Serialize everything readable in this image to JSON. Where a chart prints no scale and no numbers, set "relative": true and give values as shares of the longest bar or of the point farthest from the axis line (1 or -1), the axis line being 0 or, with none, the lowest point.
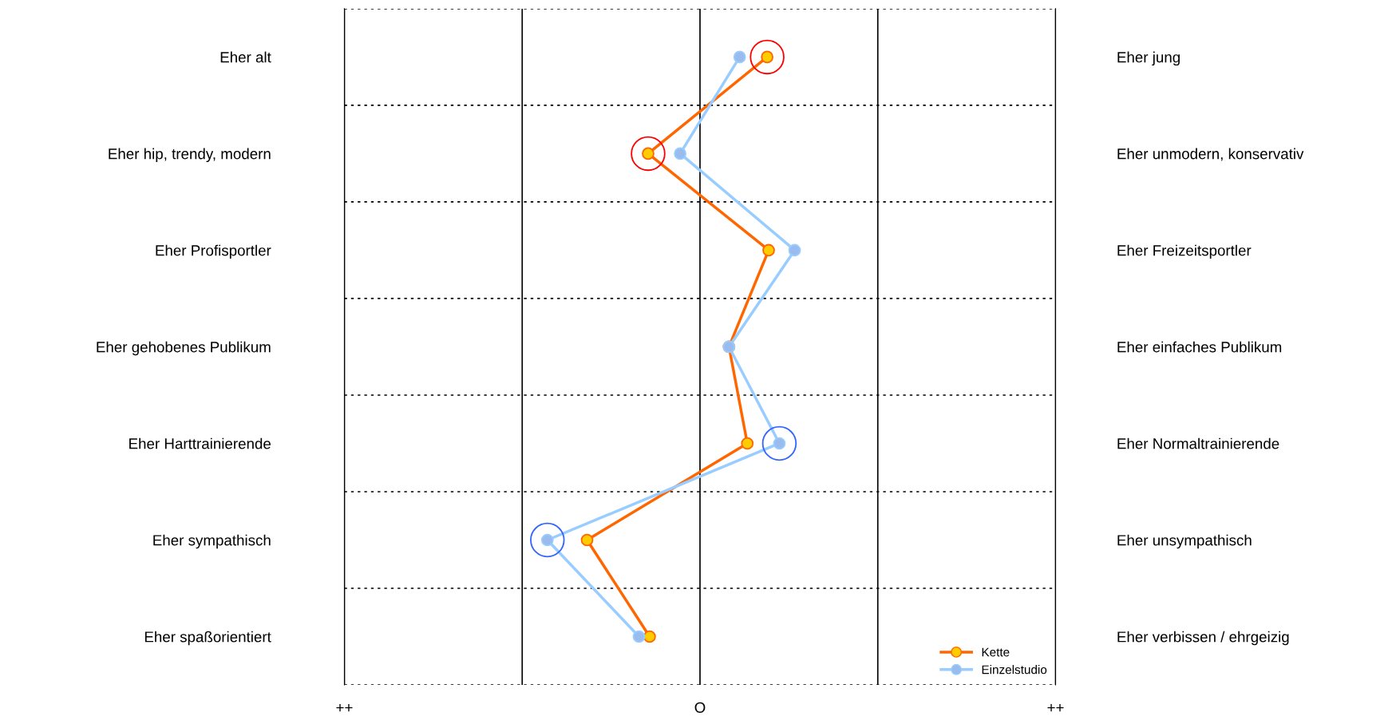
{
  "chart_data": {
    "type": "line",
    "orientation": "horizontal",
    "relative": true,
    "categories": [
      "Eher alt",
      "Eher hip, trendy, modern",
      "Eher Profisportler",
      "Eher gehobenes Publikum",
      "Eher Harttrainierende",
      "Eher sympathisch",
      "Eher spaßorientiert"
    ],
    "y2_categories": [
      "Eher jung",
      "Eher unmodern, konservativ",
      "Eher Freizeitsportler",
      "Eher einfaches Publikum",
      "Eher Normaltrainierende",
      "Eher unsympathisch",
      "Eher verbissen / ehrgeizig"
    ],
    "series": [
      {
        "name": "Kette",
        "color": "#ff6600",
        "colors": [
          "#ffcc00",
          "#ffcc00",
          "#ffcc00",
          "#ffcc00",
          "#ffcc00",
          "#ffcc00",
          "#ffcc00"
        ],
        "values": [
          0.44,
          -0.34,
          0.45,
          0.19,
          0.31,
          -0.74,
          -0.33
        ]
      },
      {
        "name": "Einzelstudio",
        "color": "#99ccff",
        "colors": [
          "#99bbee",
          "#99bbee",
          "#99bbee",
          "#99bbee",
          "#99bbee",
          "#99bbee",
          "#99bbee"
        ],
        "values": [
          0.26,
          -0.13,
          0.62,
          0.19,
          0.52,
          -1,
          -0.4
        ]
      },
      {
        "type": "scatter",
        "color": "#ff0000",
        "values": [
          0.44,
          -0.34,
          null,
          null,
          null,
          null,
          null
        ]
      },
      {
        "type": "scatter",
        "color": "#3366ff",
        "values": [
          null,
          null,
          null,
          null,
          0.52,
          -1,
          null
        ]
      }
    ],
    "annotations": [
      "++",
      "O",
      "++"
    ],
    "marker": "circle",
    "line_style": "solid",
    "legend": "bottom right"
  }
}
